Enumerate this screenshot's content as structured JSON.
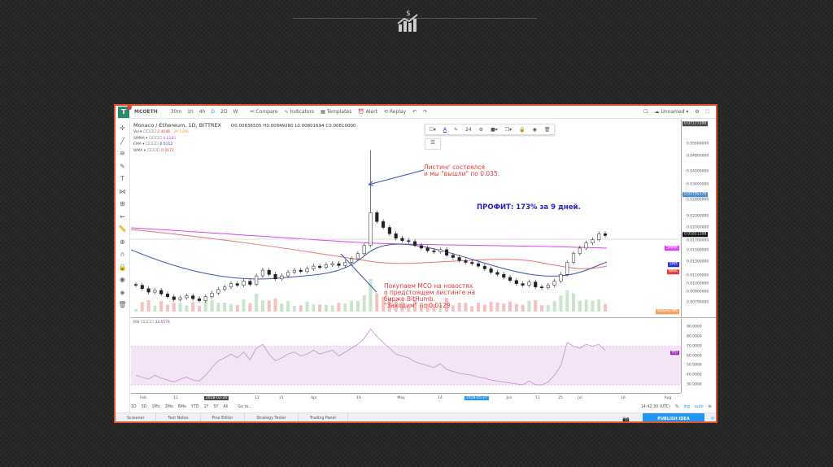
{
  "toolbar": {
    "symbol": "MCOETH",
    "intervals": [
      "30m",
      "1h",
      "4h",
      "D",
      "2D",
      "W"
    ],
    "active_interval": "D",
    "compare": "Compare",
    "indicators": "Indicators",
    "templates": "Templates",
    "alert": "Alert",
    "replay": "Replay",
    "layout_name": "Unnamed"
  },
  "legend": {
    "title": "Monaco / Ethereum, 1D, BITTREX",
    "ohlc": "O0.00836505 H0.00849280 L0.00801694 C0.00810000",
    "indicators": [
      {
        "name": "Vol",
        "value": "2.4546",
        "value2": "39.5246",
        "color": "#e53935"
      },
      {
        "name": "SMMA",
        "value": "0.0185",
        "color": "#e040fb"
      },
      {
        "name": "EMA",
        "value": "0.0112",
        "color": "#3030d0"
      },
      {
        "name": "WMA",
        "value": "0.0172",
        "color": "#e53935"
      }
    ],
    "rsi_name": "RSI",
    "rsi_value": "33.5574"
  },
  "drawing_toolbar": {
    "font_size": "24"
  },
  "annotations": {
    "exit_note": [
      "Листинг состоялся",
      "и мы \"вышли\" по 0.035."
    ],
    "profit": "ПРОФИТ: 173% за 9 дней.",
    "entry_note": [
      "Покупаем МСО на новостях",
      "о предстоящем листинге на",
      "бирже BitHumb.",
      "\"Заходим\" по 0.0129"
    ]
  },
  "price_axis": {
    "ticks": [
      "0.05600000",
      "0.04800000",
      "0.04000000",
      "0.03400000",
      "0.02800000",
      "0.02300000",
      "0.02000000",
      "0.01700000",
      "0.01500000",
      "0.01300000",
      "0.01100000",
      "0.01000000",
      "0.00900000",
      "0.00790000"
    ],
    "badges": [
      {
        "label": "0.07177200",
        "color": "#4a4a4a"
      },
      {
        "label": "0.02795379",
        "color": "#4a8ccc"
      },
      {
        "label": "0.01811108",
        "color": "#111111"
      }
    ],
    "series_tags": [
      {
        "label": "SMMA",
        "color": "#e040fb"
      },
      {
        "label": "EMA",
        "color": "#3030d0"
      },
      {
        "label": "WMA",
        "color": "#e53935"
      },
      {
        "label": "Volume MA",
        "color": "#f0a060"
      }
    ]
  },
  "rsi_axis": {
    "ticks": [
      "90.0000",
      "80.0000",
      "70.0000",
      "60.0000",
      "50.0000",
      "40.0000",
      "30.0000"
    ],
    "tag": "RSI",
    "tag_color": "#9c27b0"
  },
  "time_axis": {
    "labels": [
      "Feb",
      "12",
      "2018-02-26",
      "12",
      "21",
      "Apr",
      "16",
      "May",
      "14",
      "2018-05-27",
      "Jun",
      "11",
      "25",
      "Jul",
      "16",
      "Aug"
    ]
  },
  "range_bar": {
    "ranges": [
      "1D",
      "5D",
      "1Mo",
      "3Mo",
      "6Mo",
      "YTD",
      "1Y",
      "5Y",
      "All"
    ],
    "goto": "Go to...",
    "clock": "14:42:30 (UTC)",
    "percent": "%",
    "log": "log",
    "auto": "auto"
  },
  "bottom_tabs": [
    "Screener",
    "Text Notes",
    "Pine Editor",
    "Strategy Tester",
    "Trading Panel"
  ],
  "publish": "PUBLISH IDEA",
  "chart_data": {
    "type": "candlestick",
    "log_scale": true,
    "ylim": [
      0.0075,
      0.06
    ],
    "closes": [
      0.0098,
      0.0094,
      0.009,
      0.0092,
      0.0088,
      0.0085,
      0.0082,
      0.0084,
      0.0086,
      0.0083,
      0.0081,
      0.0085,
      0.0089,
      0.0093,
      0.0096,
      0.01,
      0.0098,
      0.0103,
      0.0099,
      0.011,
      0.0118,
      0.0112,
      0.0106,
      0.011,
      0.0115,
      0.0118,
      0.0116,
      0.012,
      0.0124,
      0.0122,
      0.0126,
      0.0128,
      0.0125,
      0.013,
      0.0136,
      0.0145,
      0.016,
      0.024,
      0.0215,
      0.02,
      0.0185,
      0.0175,
      0.017,
      0.0168,
      0.016,
      0.0155,
      0.015,
      0.0148,
      0.0152,
      0.0142,
      0.0138,
      0.0133,
      0.013,
      0.0128,
      0.0124,
      0.012,
      0.0115,
      0.0112,
      0.0108,
      0.0104,
      0.01,
      0.0098,
      0.0102,
      0.0096,
      0.0095,
      0.0098,
      0.0103,
      0.0112,
      0.013,
      0.0145,
      0.0155,
      0.0165,
      0.0172,
      0.0185,
      0.0181
    ],
    "spike_high": 0.052,
    "rsi": [
      40,
      38,
      36,
      40,
      37,
      35,
      33,
      36,
      38,
      35,
      34,
      40,
      48,
      55,
      58,
      62,
      58,
      64,
      56,
      68,
      72,
      62,
      55,
      58,
      62,
      64,
      60,
      62,
      66,
      62,
      64,
      66,
      60,
      64,
      68,
      72,
      78,
      88,
      80,
      74,
      68,
      62,
      60,
      58,
      54,
      52,
      50,
      48,
      52,
      46,
      44,
      42,
      41,
      40,
      38,
      37,
      35,
      34,
      33,
      32,
      31,
      30,
      34,
      30,
      30,
      33,
      40,
      50,
      74,
      70,
      68,
      72,
      70,
      72,
      66
    ],
    "rsi_ylim": [
      25,
      95
    ]
  }
}
